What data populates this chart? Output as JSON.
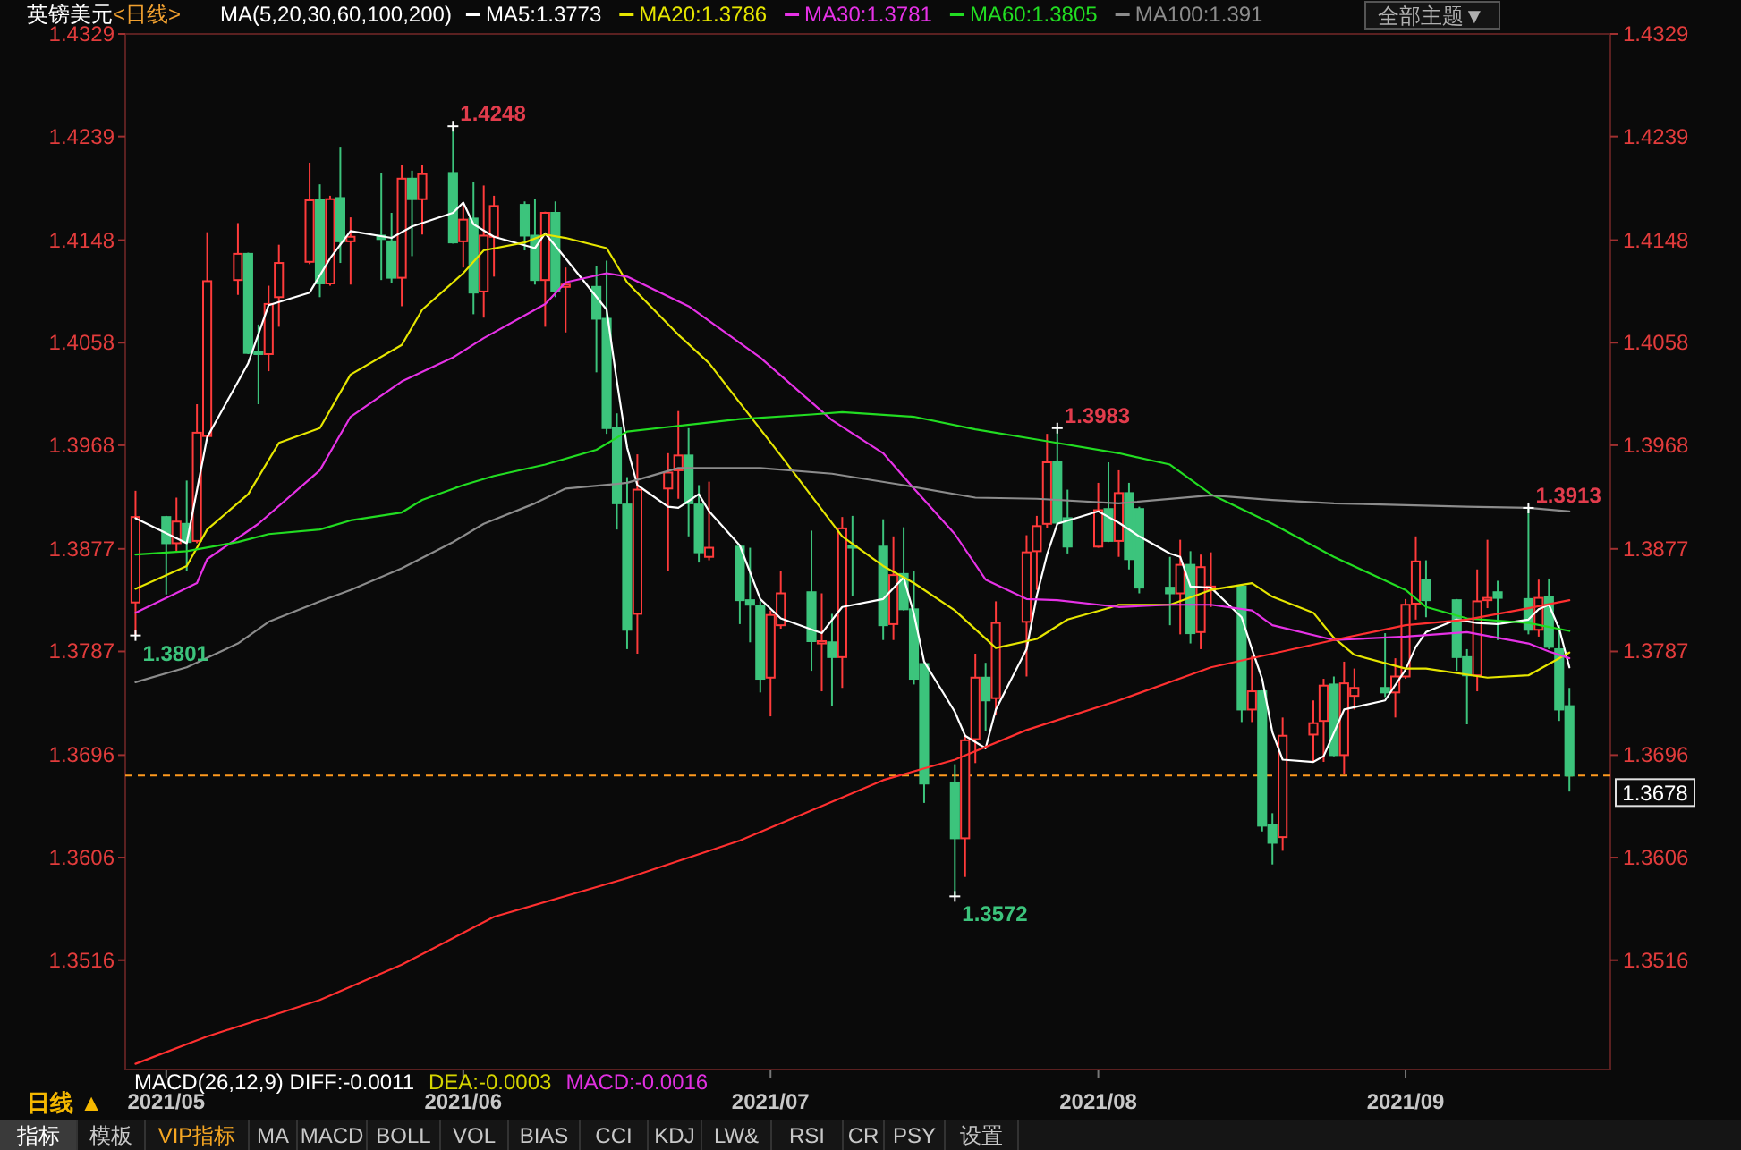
{
  "chart_data": {
    "type": "candlestick",
    "title": "英镑美元",
    "subtitle": "<日线>",
    "x": [
      "2021-04-30",
      "2021-05-03",
      "2021-05-04",
      "2021-05-05",
      "2021-05-06",
      "2021-05-07",
      "2021-05-10",
      "2021-05-11",
      "2021-05-12",
      "2021-05-13",
      "2021-05-14",
      "2021-05-17",
      "2021-05-18",
      "2021-05-19",
      "2021-05-20",
      "2021-05-21",
      "2021-05-24",
      "2021-05-25",
      "2021-05-26",
      "2021-05-27",
      "2021-05-28",
      "2021-05-31",
      "2021-06-01",
      "2021-06-02",
      "2021-06-03",
      "2021-06-04",
      "2021-06-07",
      "2021-06-08",
      "2021-06-09",
      "2021-06-10",
      "2021-06-11",
      "2021-06-14",
      "2021-06-15",
      "2021-06-16",
      "2021-06-17",
      "2021-06-18",
      "2021-06-21",
      "2021-06-22",
      "2021-06-23",
      "2021-06-24",
      "2021-06-25",
      "2021-06-28",
      "2021-06-29",
      "2021-06-30",
      "2021-07-01",
      "2021-07-02",
      "2021-07-05",
      "2021-07-06",
      "2021-07-07",
      "2021-07-08",
      "2021-07-09",
      "2021-07-12",
      "2021-07-13",
      "2021-07-14",
      "2021-07-15",
      "2021-07-16",
      "2021-07-19",
      "2021-07-20",
      "2021-07-21",
      "2021-07-22",
      "2021-07-23",
      "2021-07-26",
      "2021-07-27",
      "2021-07-28",
      "2021-07-29",
      "2021-07-30",
      "2021-08-02",
      "2021-08-03",
      "2021-08-04",
      "2021-08-05",
      "2021-08-06",
      "2021-08-09",
      "2021-08-10",
      "2021-08-11",
      "2021-08-12",
      "2021-08-13",
      "2021-08-16",
      "2021-08-17",
      "2021-08-18",
      "2021-08-19",
      "2021-08-20",
      "2021-08-23",
      "2021-08-24",
      "2021-08-25",
      "2021-08-26",
      "2021-08-27",
      "2021-08-30",
      "2021-08-31",
      "2021-09-01",
      "2021-09-02",
      "2021-09-03",
      "2021-09-06",
      "2021-09-07",
      "2021-09-08",
      "2021-09-09",
      "2021-09-10",
      "2021-09-13",
      "2021-09-14",
      "2021-09-15",
      "2021-09-16",
      "2021-09-17"
    ],
    "ohlc": [
      [
        1.383,
        1.3928,
        1.3801,
        1.3905
      ],
      [
        1.3905,
        1.3906,
        1.3837,
        1.3882
      ],
      [
        1.3882,
        1.3922,
        1.3874,
        1.3901
      ],
      [
        1.3899,
        1.3937,
        1.3858,
        1.3883
      ],
      [
        1.3884,
        1.4004,
        1.3882,
        1.3979
      ],
      [
        1.3976,
        1.4155,
        1.3974,
        1.4112
      ],
      [
        1.4113,
        1.4163,
        1.41,
        1.4136
      ],
      [
        1.4136,
        1.4137,
        1.4048,
        1.4049
      ],
      [
        1.405,
        1.4074,
        1.4004,
        1.4048
      ],
      [
        1.4048,
        1.4108,
        1.4033,
        1.4092
      ],
      [
        1.4098,
        1.4144,
        1.4072,
        1.4128
      ],
      [
        1.4129,
        1.4216,
        1.4127,
        1.4183
      ],
      [
        1.4183,
        1.4197,
        1.4098,
        1.411
      ],
      [
        1.411,
        1.4187,
        1.4108,
        1.4184
      ],
      [
        1.4185,
        1.423,
        1.4128,
        1.4147
      ],
      [
        1.4147,
        1.4168,
        1.4109,
        1.4151
      ],
      [
        1.4152,
        1.4207,
        1.4113,
        1.4149
      ],
      [
        1.4147,
        1.4172,
        1.411,
        1.4115
      ],
      [
        1.4115,
        1.4214,
        1.409,
        1.4202
      ],
      [
        1.4202,
        1.4209,
        1.4134,
        1.4184
      ],
      [
        1.4184,
        1.4214,
        1.4153,
        1.4206
      ],
      [
        1.4207,
        1.4248,
        1.4145,
        1.4146
      ],
      [
        1.4147,
        1.4181,
        1.4124,
        1.4166
      ],
      [
        1.4167,
        1.4199,
        1.4083,
        1.4102
      ],
      [
        1.4103,
        1.4196,
        1.408,
        1.4152
      ],
      [
        1.4151,
        1.4187,
        1.4116,
        1.4178
      ],
      [
        1.4179,
        1.4182,
        1.4139,
        1.4152
      ],
      [
        1.4152,
        1.4184,
        1.4109,
        1.4113
      ],
      [
        1.4113,
        1.4173,
        1.4072,
        1.4172
      ],
      [
        1.4172,
        1.4182,
        1.4098,
        1.4103
      ],
      [
        1.4107,
        1.4124,
        1.4067,
        1.4109
      ],
      [
        1.4107,
        1.4125,
        1.4032,
        1.4079
      ],
      [
        1.4079,
        1.413,
        1.3978,
        1.3983
      ],
      [
        1.3983,
        1.3996,
        1.3894,
        1.3917
      ],
      [
        1.3916,
        1.394,
        1.3789,
        1.3806
      ],
      [
        1.382,
        1.396,
        1.3785,
        1.3929
      ],
      [
        1.393,
        1.3961,
        1.3858,
        1.3944
      ],
      [
        1.3946,
        1.3998,
        1.3921,
        1.3959
      ],
      [
        1.3959,
        1.3983,
        1.3888,
        1.3917
      ],
      [
        1.3916,
        1.3933,
        1.3865,
        1.3874
      ],
      [
        1.387,
        1.3936,
        1.3867,
        1.3878
      ],
      [
        1.3879,
        1.388,
        1.3811,
        1.3832
      ],
      [
        1.3832,
        1.3878,
        1.3795,
        1.3828
      ],
      [
        1.3827,
        1.3831,
        1.3751,
        1.3763
      ],
      [
        1.3764,
        1.3823,
        1.373,
        1.3819
      ],
      [
        1.381,
        1.3858,
        1.3807,
        1.3838
      ],
      [
        1.3839,
        1.3893,
        1.377,
        1.3796
      ],
      [
        1.3794,
        1.3838,
        1.3752,
        1.3796
      ],
      [
        1.3795,
        1.382,
        1.3739,
        1.3782
      ],
      [
        1.3782,
        1.3905,
        1.3755,
        1.3895
      ],
      [
        1.388,
        1.3906,
        1.3836,
        1.3878
      ],
      [
        1.3879,
        1.3903,
        1.3797,
        1.381
      ],
      [
        1.3811,
        1.3888,
        1.3797,
        1.3854
      ],
      [
        1.3855,
        1.3896,
        1.3823,
        1.3824
      ],
      [
        1.3824,
        1.3858,
        1.3758,
        1.3763
      ],
      [
        1.3776,
        1.3777,
        1.3654,
        1.3671
      ],
      [
        1.3672,
        1.3688,
        1.3572,
        1.3623
      ],
      [
        1.3623,
        1.3714,
        1.3589,
        1.3709
      ],
      [
        1.371,
        1.3785,
        1.3689,
        1.3764
      ],
      [
        1.3764,
        1.3777,
        1.3717,
        1.3744
      ],
      [
        1.3746,
        1.3831,
        1.3731,
        1.3812
      ],
      [
        1.3813,
        1.3889,
        1.3765,
        1.3874
      ],
      [
        1.3875,
        1.3906,
        1.3841,
        1.3897
      ],
      [
        1.3899,
        1.3978,
        1.3895,
        1.3953
      ],
      [
        1.3953,
        1.3983,
        1.3898,
        1.39
      ],
      [
        1.3904,
        1.3929,
        1.3873,
        1.3879
      ],
      [
        1.3879,
        1.3935,
        1.3878,
        1.3911
      ],
      [
        1.3912,
        1.3953,
        1.3883,
        1.3884
      ],
      [
        1.3884,
        1.3946,
        1.387,
        1.3926
      ],
      [
        1.3926,
        1.3935,
        1.3859,
        1.3868
      ],
      [
        1.3912,
        1.3914,
        1.3838,
        1.3843
      ],
      [
        1.3843,
        1.387,
        1.381,
        1.3838
      ],
      [
        1.3838,
        1.3885,
        1.3802,
        1.3863
      ],
      [
        1.3863,
        1.3875,
        1.3794,
        1.3803
      ],
      [
        1.3804,
        1.3872,
        1.3789,
        1.3861
      ],
      [
        1.3841,
        1.3874,
        1.3826,
        1.3844
      ],
      [
        1.3844,
        1.3845,
        1.3725,
        1.3736
      ],
      [
        1.3736,
        1.3783,
        1.3725,
        1.3752
      ],
      [
        1.3752,
        1.3753,
        1.3629,
        1.3634
      ],
      [
        1.3635,
        1.3645,
        1.36,
        1.3619
      ],
      [
        1.3624,
        1.3729,
        1.3612,
        1.3713
      ],
      [
        1.3714,
        1.3744,
        1.369,
        1.3724
      ],
      [
        1.3726,
        1.3763,
        1.369,
        1.3757
      ],
      [
        1.3758,
        1.3765,
        1.3695,
        1.3696
      ],
      [
        1.3696,
        1.3778,
        1.3679,
        1.3759
      ],
      [
        1.3748,
        1.3772,
        1.3736,
        1.3755
      ],
      [
        1.3755,
        1.3803,
        1.3747,
        1.3751
      ],
      [
        1.3751,
        1.3781,
        1.3729,
        1.3765
      ],
      [
        1.3765,
        1.3833,
        1.3763,
        1.3828
      ],
      [
        1.3829,
        1.3888,
        1.3815,
        1.3866
      ],
      [
        1.385,
        1.3867,
        1.3817,
        1.3832
      ],
      [
        1.3832,
        1.3833,
        1.377,
        1.3782
      ],
      [
        1.3782,
        1.3789,
        1.3723,
        1.3766
      ],
      [
        1.3766,
        1.3859,
        1.3752,
        1.3831
      ],
      [
        1.3832,
        1.3885,
        1.3825,
        1.3834
      ],
      [
        1.3839,
        1.3849,
        1.3797,
        1.3834
      ],
      [
        1.3833,
        1.3913,
        1.3802,
        1.3806
      ],
      [
        1.3806,
        1.385,
        1.38,
        1.3834
      ],
      [
        1.3835,
        1.3851,
        1.3789,
        1.3791
      ],
      [
        1.3789,
        1.381,
        1.3726,
        1.3736
      ],
      [
        1.3739,
        1.3755,
        1.3664,
        1.3678
      ]
    ],
    "colors": [
      "#ff3b3b",
      "#3cc47c",
      "#ff3b3b",
      "#3cc47c",
      "#ff3b3b",
      "#ff3b3b",
      "#ff3b3b",
      "#3cc47c",
      "#3cc47c",
      "#ff3b3b",
      "#ff3b3b",
      "#ff3b3b",
      "#3cc47c",
      "#ff3b3b",
      "#3cc47c",
      "#ff3b3b",
      "#3cc47c",
      "#3cc47c",
      "#ff3b3b",
      "#3cc47c",
      "#ff3b3b",
      "#3cc47c",
      "#ff3b3b",
      "#3cc47c",
      "#ff3b3b",
      "#ff3b3b",
      "#3cc47c",
      "#3cc47c",
      "#ff3b3b",
      "#3cc47c",
      "#ff3b3b",
      "#3cc47c",
      "#3cc47c",
      "#3cc47c",
      "#3cc47c",
      "#ff3b3b",
      "#ff3b3b",
      "#ff3b3b",
      "#3cc47c",
      "#3cc47c",
      "#ff3b3b",
      "#3cc47c",
      "#3cc47c",
      "#3cc47c",
      "#ff3b3b",
      "#ff3b3b",
      "#3cc47c",
      "#ff3b3b",
      "#3cc47c",
      "#ff3b3b",
      "#3cc47c",
      "#3cc47c",
      "#ff3b3b",
      "#3cc47c",
      "#3cc47c",
      "#3cc47c",
      "#3cc47c",
      "#ff3b3b",
      "#ff3b3b",
      "#3cc47c",
      "#ff3b3b",
      "#ff3b3b",
      "#ff3b3b",
      "#ff3b3b",
      "#3cc47c",
      "#3cc47c",
      "#ff3b3b",
      "#3cc47c",
      "#ff3b3b",
      "#3cc47c",
      "#3cc47c",
      "#3cc47c",
      "#ff3b3b",
      "#3cc47c",
      "#ff3b3b",
      "#ff3b3b",
      "#3cc47c",
      "#ff3b3b",
      "#3cc47c",
      "#3cc47c",
      "#ff3b3b",
      "#ff3b3b",
      "#ff3b3b",
      "#3cc47c",
      "#ff3b3b",
      "#ff3b3b",
      "#3cc47c",
      "#ff3b3b",
      "#ff3b3b",
      "#ff3b3b",
      "#3cc47c",
      "#3cc47c",
      "#3cc47c",
      "#ff3b3b",
      "#ff3b3b",
      "#3cc47c",
      "#3cc47c",
      "#ff3b3b",
      "#3cc47c",
      "#3cc47c",
      "#3cc47c"
    ],
    "series": [
      {
        "name": "MA5:1.3773",
        "type": "line",
        "color": "#ffffff",
        "x": [
          "2021-04-30",
          "2021-05-05",
          "2021-05-07",
          "2021-05-11",
          "2021-05-13",
          "2021-05-17",
          "2021-05-19",
          "2021-05-21",
          "2021-05-25",
          "2021-05-27",
          "2021-05-31",
          "2021-06-01",
          "2021-06-02",
          "2021-06-04",
          "2021-06-08",
          "2021-06-09",
          "2021-06-11",
          "2021-06-15",
          "2021-06-16",
          "2021-06-17",
          "2021-06-18",
          "2021-06-21",
          "2021-06-22",
          "2021-06-24",
          "2021-06-25",
          "2021-06-28",
          "2021-06-30",
          "2021-07-02",
          "2021-07-06",
          "2021-07-08",
          "2021-07-12",
          "2021-07-14",
          "2021-07-15",
          "2021-07-16",
          "2021-07-19",
          "2021-07-20",
          "2021-07-22",
          "2021-07-23",
          "2021-07-26",
          "2021-07-27",
          "2021-07-28",
          "2021-07-29",
          "2021-08-02",
          "2021-08-03",
          "2021-08-04",
          "2021-08-06",
          "2021-08-09",
          "2021-08-10",
          "2021-08-11",
          "2021-08-13",
          "2021-08-16",
          "2021-08-17",
          "2021-08-18",
          "2021-08-19",
          "2021-08-20",
          "2021-08-23",
          "2021-08-24",
          "2021-08-26",
          "2021-08-30",
          "2021-09-01",
          "2021-09-02",
          "2021-09-03",
          "2021-09-06",
          "2021-09-08",
          "2021-09-10",
          "2021-09-13",
          "2021-09-14",
          "2021-09-15",
          "2021-09-16",
          "2021-09-17"
        ],
        "values": [
          1.3904,
          1.3882,
          1.3975,
          1.404,
          1.4091,
          1.4102,
          1.4132,
          1.4156,
          1.415,
          1.416,
          1.4172,
          1.4181,
          1.4162,
          1.4151,
          1.4141,
          1.4154,
          1.4132,
          1.4087,
          1.4024,
          1.3966,
          1.3933,
          1.3914,
          1.3913,
          1.3925,
          1.391,
          1.388,
          1.3833,
          1.3816,
          1.3803,
          1.3826,
          1.3833,
          1.3852,
          1.382,
          1.3778,
          1.3734,
          1.3713,
          1.3702,
          1.3736,
          1.3789,
          1.3836,
          1.3872,
          1.3899,
          1.391,
          1.3905,
          1.39,
          1.3888,
          1.3873,
          1.387,
          1.3844,
          1.3843,
          1.3817,
          1.3789,
          1.3763,
          1.3716,
          1.3692,
          1.369,
          1.3695,
          1.3736,
          1.3744,
          1.3771,
          1.3791,
          1.3804,
          1.3815,
          1.3812,
          1.3811,
          1.3815,
          1.3824,
          1.3828,
          1.3807,
          1.3773
        ]
      },
      {
        "name": "MA20:1.3786",
        "type": "line",
        "color": "#e6e600",
        "x": [
          "2021-04-30",
          "2021-05-05",
          "2021-05-07",
          "2021-05-11",
          "2021-05-14",
          "2021-05-18",
          "2021-05-21",
          "2021-05-26",
          "2021-05-28",
          "2021-06-01",
          "2021-06-03",
          "2021-06-07",
          "2021-06-09",
          "2021-06-11",
          "2021-06-15",
          "2021-06-17",
          "2021-06-22",
          "2021-06-25",
          "2021-07-02",
          "2021-07-08",
          "2021-07-12",
          "2021-07-15",
          "2021-07-19",
          "2021-07-23",
          "2021-07-27",
          "2021-07-30",
          "2021-08-03",
          "2021-08-04",
          "2021-08-09",
          "2021-08-13",
          "2021-08-17",
          "2021-08-19",
          "2021-08-23",
          "2021-08-25",
          "2021-08-27",
          "2021-09-01",
          "2021-09-03",
          "2021-09-09",
          "2021-09-13",
          "2021-09-15",
          "2021-09-17"
        ],
        "values": [
          1.3842,
          1.3862,
          1.3894,
          1.3925,
          1.397,
          1.3983,
          1.403,
          1.4056,
          1.4087,
          1.4119,
          1.4139,
          1.4146,
          1.4153,
          1.415,
          1.4141,
          1.4111,
          1.4065,
          1.404,
          1.3959,
          1.3888,
          1.3862,
          1.3847,
          1.3823,
          1.379,
          1.3798,
          1.3815,
          1.3825,
          1.3828,
          1.3828,
          1.3841,
          1.3847,
          1.3835,
          1.3821,
          1.3799,
          1.3784,
          1.3772,
          1.3772,
          1.3764,
          1.3766,
          1.3776,
          1.3786
        ]
      },
      {
        "name": "MA30:1.3781",
        "type": "line",
        "color": "#e632e6",
        "x": [
          "2021-04-30",
          "2021-05-06",
          "2021-05-07",
          "2021-05-12",
          "2021-05-18",
          "2021-05-21",
          "2021-05-26",
          "2021-05-31",
          "2021-06-03",
          "2021-06-09",
          "2021-06-11",
          "2021-06-15",
          "2021-06-17",
          "2021-06-23",
          "2021-06-30",
          "2021-07-07",
          "2021-07-12",
          "2021-07-15",
          "2021-07-19",
          "2021-07-22",
          "2021-07-26",
          "2021-07-29",
          "2021-08-04",
          "2021-08-09",
          "2021-08-13",
          "2021-08-17",
          "2021-08-19",
          "2021-08-25",
          "2021-09-01",
          "2021-09-07",
          "2021-09-13",
          "2021-09-15",
          "2021-09-17"
        ],
        "values": [
          1.3821,
          1.3847,
          1.3868,
          1.3899,
          1.3946,
          1.3993,
          1.4024,
          1.4045,
          1.4062,
          1.4092,
          1.4111,
          1.4119,
          1.4116,
          1.409,
          1.4045,
          1.399,
          1.3961,
          1.393,
          1.389,
          1.385,
          1.3833,
          1.3832,
          1.3826,
          1.3828,
          1.3828,
          1.3823,
          1.381,
          1.3797,
          1.38,
          1.3804,
          1.3794,
          1.3787,
          1.3781
        ]
      },
      {
        "name": "MA60:1.3805",
        "type": "line",
        "color": "#22dd22",
        "x": [
          "2021-04-30",
          "2021-05-05",
          "2021-05-10",
          "2021-05-13",
          "2021-05-18",
          "2021-05-21",
          "2021-05-26",
          "2021-05-28",
          "2021-06-01",
          "2021-06-04",
          "2021-06-09",
          "2021-06-14",
          "2021-06-17",
          "2021-06-22",
          "2021-06-28",
          "2021-07-05",
          "2021-07-08",
          "2021-07-15",
          "2021-07-21",
          "2021-07-27",
          "2021-08-04",
          "2021-08-09",
          "2021-08-13",
          "2021-08-19",
          "2021-08-25",
          "2021-09-01",
          "2021-09-03",
          "2021-09-07",
          "2021-09-13",
          "2021-09-17"
        ],
        "values": [
          1.3872,
          1.3875,
          1.3883,
          1.389,
          1.3894,
          1.3902,
          1.3909,
          1.392,
          1.3933,
          1.3941,
          1.3951,
          1.3964,
          1.398,
          1.3985,
          1.3991,
          1.3995,
          1.3997,
          1.3993,
          1.3982,
          1.3973,
          1.3961,
          1.3951,
          1.3925,
          1.3899,
          1.387,
          1.3841,
          1.3826,
          1.3816,
          1.3812,
          1.3805
        ]
      },
      {
        "name": "MA100:1.391",
        "type": "line",
        "color": "#8c8c8c",
        "x": [
          "2021-04-30",
          "2021-05-05",
          "2021-05-10",
          "2021-05-13",
          "2021-05-18",
          "2021-05-21",
          "2021-05-26",
          "2021-05-31",
          "2021-06-03",
          "2021-06-08",
          "2021-06-11",
          "2021-06-16",
          "2021-06-17",
          "2021-06-22",
          "2021-06-30",
          "2021-07-07",
          "2021-07-14",
          "2021-07-21",
          "2021-07-27",
          "2021-08-04",
          "2021-08-13",
          "2021-08-19",
          "2021-08-25",
          "2021-09-07",
          "2021-09-13",
          "2021-09-17"
        ],
        "values": [
          1.376,
          1.3773,
          1.3794,
          1.3813,
          1.3831,
          1.3841,
          1.386,
          1.3883,
          1.3899,
          1.3917,
          1.393,
          1.3934,
          1.3935,
          1.3948,
          1.3948,
          1.3943,
          1.3933,
          1.3922,
          1.3921,
          1.3917,
          1.3924,
          1.392,
          1.3917,
          1.3914,
          1.3913,
          1.391
        ]
      },
      {
        "type": "line",
        "color": "#ff3030",
        "x": [
          "2021-04-30",
          "2021-05-07",
          "2021-05-18",
          "2021-05-26",
          "2021-06-04",
          "2021-06-17",
          "2021-06-28",
          "2021-07-12",
          "2021-07-19",
          "2021-07-26",
          "2021-08-04",
          "2021-08-13",
          "2021-08-25",
          "2021-09-01",
          "2021-09-07",
          "2021-09-13",
          "2021-09-17"
        ],
        "values": [
          1.3425,
          1.3449,
          1.3481,
          1.3512,
          1.3554,
          1.3588,
          1.3621,
          1.3674,
          1.3692,
          1.3718,
          1.3744,
          1.3773,
          1.3797,
          1.381,
          1.3815,
          1.3825,
          1.3832
        ]
      }
    ],
    "ylim": [
      1.342,
      1.4329
    ],
    "yticks": [
      1.3516,
      1.3606,
      1.3696,
      1.3787,
      1.3877,
      1.3968,
      1.4058,
      1.4148,
      1.4239,
      1.4329
    ],
    "y2lim": [
      1.342,
      1.4329
    ],
    "y2ticks": [
      1.3516,
      1.3606,
      1.3696,
      1.3787,
      1.3877,
      1.3968,
      1.4058,
      1.4148,
      1.4239,
      1.4329
    ],
    "xlim": [
      "2021-04-29",
      "2021-09-21"
    ],
    "xticks": [
      {
        "value": "2021-05-03",
        "label": "2021/05"
      },
      {
        "value": "2021-06-01",
        "label": "2021/06"
      },
      {
        "value": "2021-07-01",
        "label": "2021/07"
      },
      {
        "value": "2021-08-02",
        "label": "2021/08"
      },
      {
        "value": "2021-09-01",
        "label": "2021/09"
      }
    ],
    "legend": "top",
    "ref_lines": [
      {
        "axis": "y",
        "value": 1.3678,
        "label": "1.3678",
        "color": "#ff9a1f",
        "line_style": "dashed"
      }
    ],
    "annotations": [
      "MA(5,20,30,60,100,200)",
      "全部主题▼",
      "MACD(26,12,9) DIFF:-0.0011",
      "DEA:-0.0003",
      "MACD:-0.0016",
      "日线 ▲",
      "指标",
      "模板",
      "VIP指标",
      "MA",
      "MACD",
      "BOLL",
      "VOL",
      "BIAS",
      "CCI",
      "KDJ",
      "LW&",
      "RSI",
      "CR",
      "PSY",
      "设置",
      {
        "text": "1.4248",
        "x": "2021-05-31",
        "y": 1.4248
      },
      {
        "text": "1.3801",
        "x": "2021-04-30",
        "y": 1.3801
      },
      {
        "text": "1.3572",
        "x": "2021-07-19",
        "y": 1.3572
      },
      {
        "text": "1.3983",
        "x": "2021-07-29",
        "y": 1.3983
      },
      {
        "text": "1.3913",
        "x": "2021-09-13",
        "y": 1.3913
      }
    ]
  }
}
